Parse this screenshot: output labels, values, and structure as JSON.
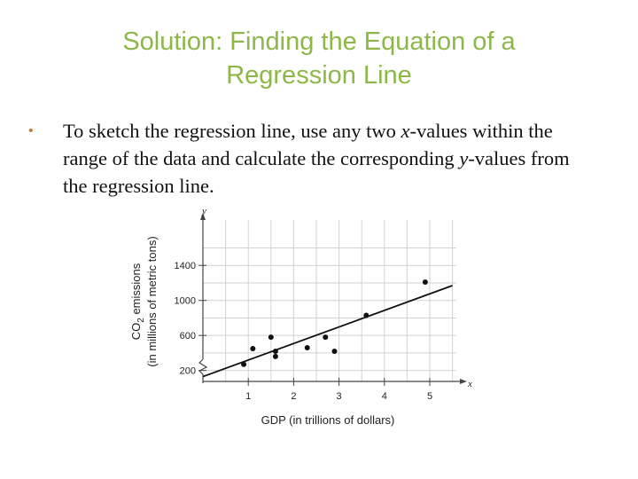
{
  "slide": {
    "title_line1": "Solution: Finding the Equation of a",
    "title_line2": "Regression Line",
    "bullet": {
      "part1": "To sketch the regression line, use any two ",
      "var_x": "x",
      "part2": "-values within the range of the data and calculate the corresponding ",
      "var_y": "y",
      "part3": "-values from the regression line."
    }
  },
  "chart_data": {
    "type": "scatter",
    "xlabel": "GDP (in trillions of dollars)",
    "ylabel_line1": "CO",
    "ylabel_sub": "2",
    "ylabel_line1_rest": " emissions",
    "ylabel_line2": "(in millions of metric tons)",
    "x_axis_var": "x",
    "y_axis_var": "y",
    "xlim": [
      0,
      6
    ],
    "ylim": [
      0,
      1600
    ],
    "x_ticks": [
      1,
      2,
      3,
      4,
      5
    ],
    "y_ticks": [
      200,
      600,
      1000,
      1400
    ],
    "y_axis_break": true,
    "grid": true,
    "points": [
      {
        "x": 0.9,
        "y": 270
      },
      {
        "x": 1.1,
        "y": 450
      },
      {
        "x": 1.5,
        "y": 580
      },
      {
        "x": 1.6,
        "y": 420
      },
      {
        "x": 1.6,
        "y": 360
      },
      {
        "x": 2.3,
        "y": 460
      },
      {
        "x": 2.7,
        "y": 580
      },
      {
        "x": 2.9,
        "y": 420
      },
      {
        "x": 3.6,
        "y": 830
      },
      {
        "x": 4.9,
        "y": 1210
      }
    ],
    "regression_line": {
      "x1": 0,
      "y1": 130,
      "x2": 5.5,
      "y2": 1170
    }
  }
}
